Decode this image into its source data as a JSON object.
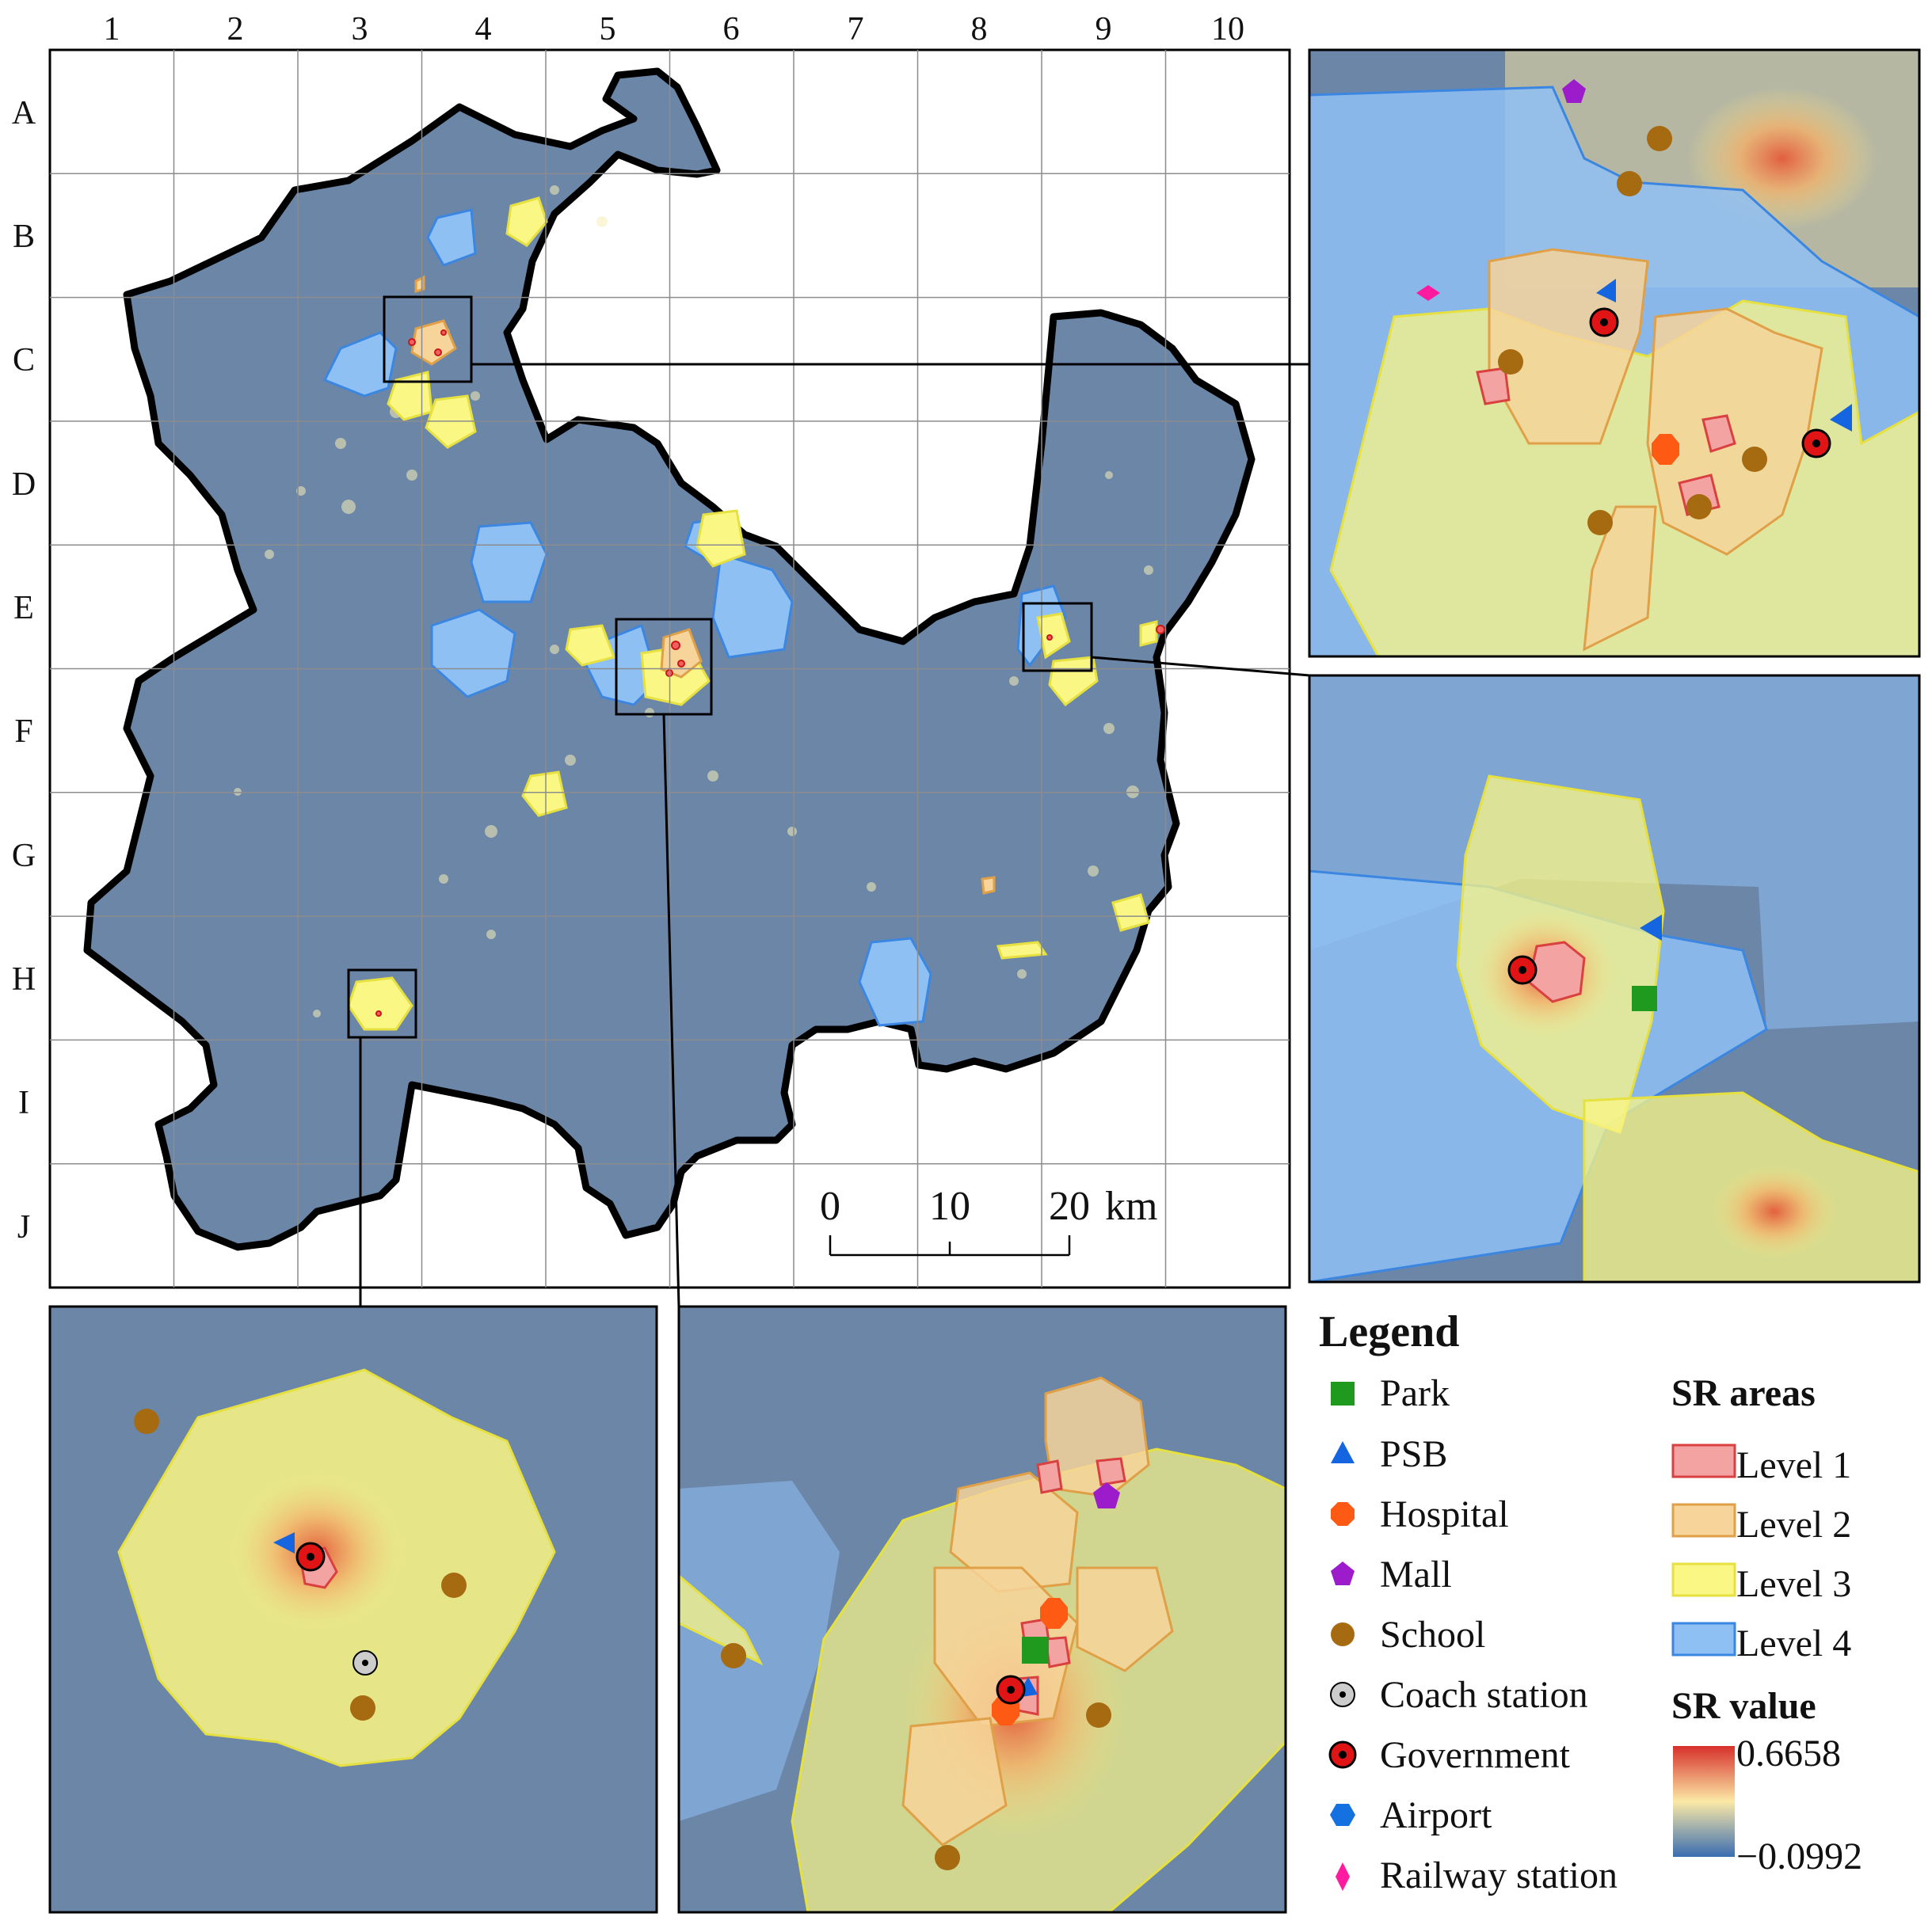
{
  "grid": {
    "columns": [
      "1",
      "2",
      "3",
      "4",
      "5",
      "6",
      "7",
      "8",
      "9",
      "10"
    ],
    "rows": [
      "A",
      "B",
      "C",
      "D",
      "E",
      "F",
      "G",
      "H",
      "I",
      "J"
    ]
  },
  "scale_bar": {
    "ticks": [
      "0",
      "10",
      "20"
    ],
    "unit": "km"
  },
  "legend": {
    "title": "Legend",
    "poi_items": [
      {
        "label": "Park",
        "icon": "green-square-icon",
        "color": "#1f9a1f"
      },
      {
        "label": "PSB",
        "icon": "blue-triangle-icon",
        "color": "#1565e0"
      },
      {
        "label": "Hospital",
        "icon": "orange-octagon-icon",
        "color": "#ff5a14"
      },
      {
        "label": "Mall",
        "icon": "purple-pentagon-icon",
        "color": "#9c1ccc"
      },
      {
        "label": "School",
        "icon": "brown-circle-icon",
        "color": "#a66a10"
      },
      {
        "label": "Coach station",
        "icon": "grey-dot-circle-icon",
        "color": "#cccccc"
      },
      {
        "label": "Government",
        "icon": "red-target-icon",
        "color": "#e01414"
      },
      {
        "label": "Airport",
        "icon": "blue-hexagon-icon",
        "color": "#1570e0"
      },
      {
        "label": "Railway station",
        "icon": "pink-diamond-icon",
        "color": "#ff1aa0"
      }
    ],
    "sr_areas_title": "SR areas",
    "sr_areas": [
      {
        "label": "Level 1",
        "fill": "#f4a3a3",
        "stroke": "#d94040"
      },
      {
        "label": "Level 2",
        "fill": "#f6d49a",
        "stroke": "#e0a048"
      },
      {
        "label": "Level 3",
        "fill": "#fbf784",
        "stroke": "#e6e040"
      },
      {
        "label": "Level 4",
        "fill": "#8fc0f4",
        "stroke": "#3a86e0"
      }
    ],
    "sr_value_title": "SR value",
    "sr_value_max": "0.6658",
    "sr_value_min": "−0.0992",
    "sr_value_colors": [
      "#d7302a",
      "#fbe9a6",
      "#3a6db0"
    ]
  },
  "colors": {
    "background_raster": "#6c86a8",
    "study_area_border": "#000000",
    "grid_line": "#8c8c8c"
  }
}
